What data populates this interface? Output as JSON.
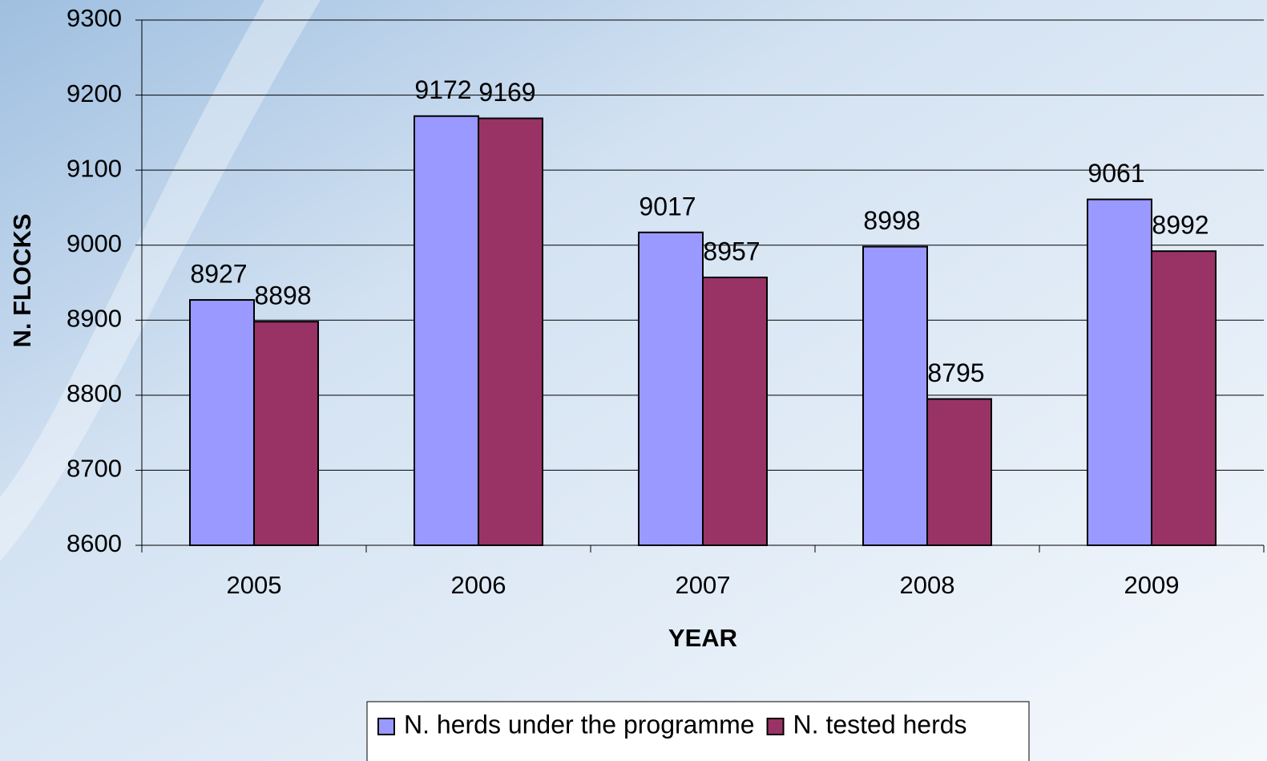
{
  "chart_data": {
    "type": "bar",
    "x_label": "YEAR",
    "y_label": "N. FLOCKS",
    "categories": [
      "2005",
      "2006",
      "2007",
      "2008",
      "2009"
    ],
    "series": [
      {
        "name": "N. herds under the programme",
        "color": "#9999ff",
        "values": [
          8927,
          9172,
          9017,
          8998,
          9061
        ]
      },
      {
        "name": "N. tested herds",
        "color": "#993366",
        "values": [
          8898,
          9169,
          8957,
          8795,
          8992
        ]
      }
    ],
    "ylim": [
      8600,
      9300
    ],
    "yticks": [
      8600,
      8700,
      8800,
      8900,
      9000,
      9100,
      9200,
      9300
    ],
    "grid": true,
    "legend": "bottom"
  }
}
